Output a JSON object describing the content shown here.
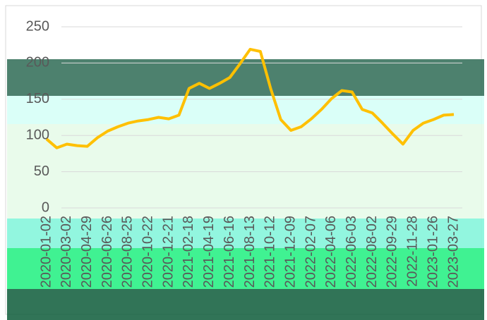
{
  "chart_data": {
    "type": "line",
    "categories": [
      "2020-01-02",
      null,
      "2020-03-02",
      null,
      "2020-04-29",
      null,
      "2020-06-26",
      null,
      "2020-08-25",
      null,
      "2020-10-22",
      null,
      "2020-12-21",
      null,
      "2021-02-18",
      null,
      "2021-04-19",
      null,
      "2021-06-16",
      null,
      "2021-08-13",
      null,
      "2021-10-12",
      null,
      "2021-12-09",
      null,
      "2022-02-07",
      null,
      "2022-04-06",
      null,
      "2022-06-03",
      null,
      "2022-08-02",
      null,
      "2022-09-29",
      null,
      "2022-11-28",
      null,
      "2023-01-26",
      null,
      "2023-03-27"
    ],
    "series": [
      {
        "color": "#ffc000",
        "values": [
          95,
          83,
          88,
          86,
          85,
          97,
          106,
          112,
          117,
          120,
          122,
          125,
          123,
          128,
          165,
          172,
          165,
          172,
          180,
          199,
          219,
          216,
          165,
          122,
          107,
          112,
          123,
          136,
          151,
          162,
          160,
          136,
          131,
          117,
          102,
          88,
          107,
          117,
          122,
          128,
          129
        ]
      }
    ],
    "ylim": [
      0,
      250
    ],
    "yticks": [
      0,
      50,
      100,
      150,
      200,
      250
    ],
    "grid": true
  }
}
